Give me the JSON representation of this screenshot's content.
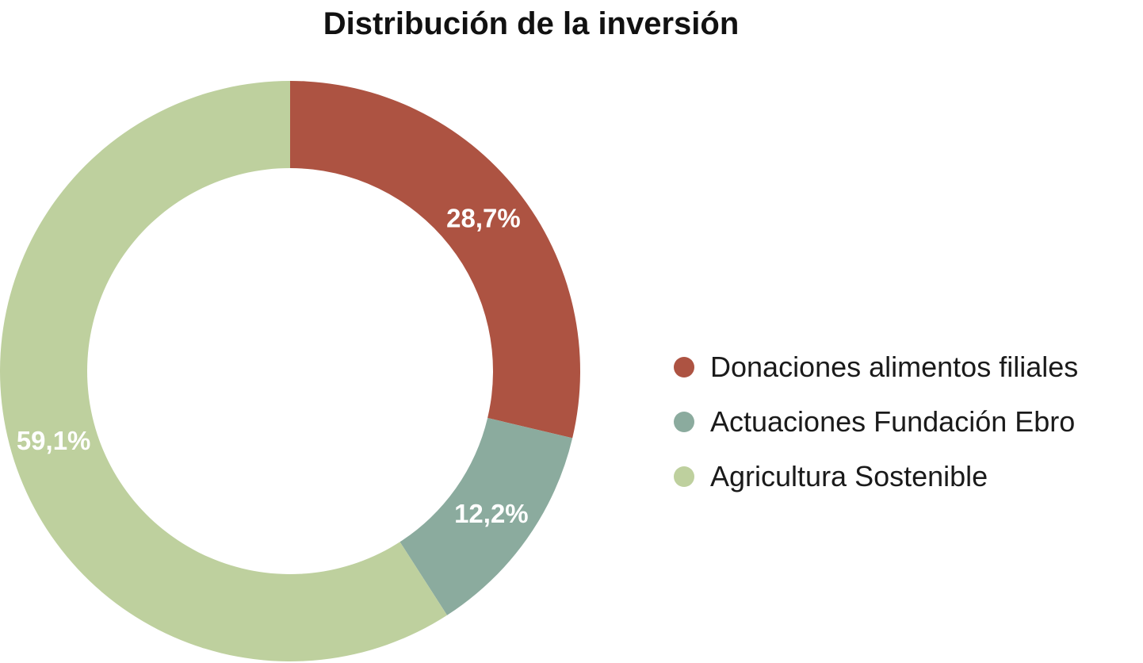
{
  "chart_data": {
    "type": "pie",
    "title": "Distribución de la inversión",
    "categories": [
      "Donaciones alimentos filiales",
      "Actuaciones Fundación Ebro",
      "Agricultura Sostenible"
    ],
    "values": [
      28.7,
      12.2,
      59.1
    ],
    "value_labels": [
      "28,7%",
      "12,2%",
      "59,1%"
    ],
    "unit": "%",
    "donut": true,
    "colors": [
      "#AD5342",
      "#8BAB9E",
      "#BED09E"
    ],
    "legend_position": "right"
  }
}
